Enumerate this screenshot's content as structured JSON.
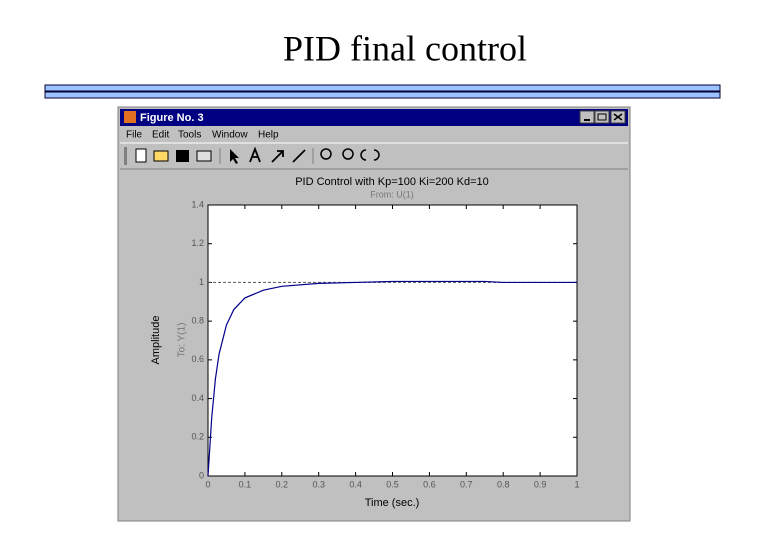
{
  "slide_title": "PID final control",
  "window": {
    "title": "Figure No. 3",
    "menu": [
      "File",
      "Edit",
      "Tools",
      "Window",
      "Help"
    ]
  },
  "chart_data": {
    "type": "line",
    "title": "PID Control with Kp=100 Ki=200 Kd=10",
    "subtitle": "From: U(1)",
    "y_label": "Amplitude",
    "y_sublabel": "To: Y(1)",
    "x_label": "Time (sec.)",
    "x": [
      0,
      0.01,
      0.02,
      0.03,
      0.05,
      0.07,
      0.1,
      0.15,
      0.2,
      0.3,
      0.4,
      0.5,
      0.6,
      0.75,
      0.8,
      1
    ],
    "series": [
      {
        "color": "#00008b",
        "values": [
          0,
          0.3,
          0.5,
          0.63,
          0.78,
          0.86,
          0.92,
          0.96,
          0.98,
          0.995,
          1.0,
          1.005,
          1.005,
          1.005,
          1.0,
          1.0
        ]
      }
    ],
    "reference_line": 1,
    "xlim": [
      0,
      1
    ],
    "ylim": [
      0,
      1.4
    ],
    "xticks": [
      0,
      0.1,
      0.2,
      0.3,
      0.4,
      0.5,
      0.6,
      0.7,
      0.8,
      0.9,
      1
    ],
    "yticks": [
      0,
      0.2,
      0.4,
      0.6,
      0.8,
      1,
      1.2,
      1.4
    ],
    "grid": false
  }
}
